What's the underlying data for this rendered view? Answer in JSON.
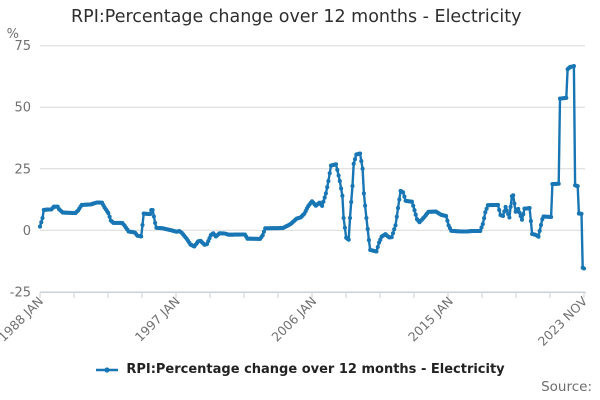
{
  "title": "RPI:Percentage change over 12 months - Electricity",
  "y_axis_unit": "%",
  "legend": {
    "label": "RPI:Percentage change over 12 months - Electricity"
  },
  "source_label": "Source:",
  "colors": {
    "line": "#1976b4",
    "grid": "#d9d9d9",
    "axis": "#c9d2dc",
    "text_muted": "#707070",
    "text_dark": "#2e2e2e"
  },
  "chart_data": {
    "type": "line",
    "title": "RPI:Percentage change over 12 months - Electricity",
    "xlabel": "",
    "ylabel": "%",
    "ylim": [
      -25,
      75
    ],
    "yticks": [
      75,
      50,
      25,
      0,
      -25
    ],
    "grid": "horizontal",
    "legend_position": "bottom-center",
    "x_range_months": [
      "1988-01",
      "2023-11"
    ],
    "xtick_labels": [
      {
        "date": "1988-01",
        "label": "1988 JAN"
      },
      {
        "date": "1997-01",
        "label": "1997 JAN"
      },
      {
        "date": "2006-01",
        "label": "2006 JAN"
      },
      {
        "date": "2015-01",
        "label": "2015 JAN"
      },
      {
        "date": "2023-11",
        "label": "2023 NOV"
      }
    ],
    "minor_xtick_count": 17,
    "series": [
      {
        "name": "RPI:Percentage change over 12 months - Electricity",
        "color": "#1976b4",
        "keypoints": [
          [
            "1988-01",
            1.5
          ],
          [
            "1988-03",
            5.0
          ],
          [
            "1988-04",
            8.3
          ],
          [
            "1988-10",
            8.5
          ],
          [
            "1988-12",
            9.6
          ],
          [
            "1989-03",
            9.6
          ],
          [
            "1989-04",
            8.6
          ],
          [
            "1989-07",
            7.2
          ],
          [
            "1990-05",
            7.0
          ],
          [
            "1990-07",
            8.0
          ],
          [
            "1990-10",
            10.3
          ],
          [
            "1991-05",
            10.5
          ],
          [
            "1991-10",
            11.3
          ],
          [
            "1992-02",
            11.2
          ],
          [
            "1992-04",
            9.3
          ],
          [
            "1992-07",
            7.0
          ],
          [
            "1992-09",
            4.0
          ],
          [
            "1992-11",
            3.0
          ],
          [
            "1993-06",
            3.0
          ],
          [
            "1993-08",
            1.8
          ],
          [
            "1993-11",
            -0.5
          ],
          [
            "1994-04",
            -0.9
          ],
          [
            "1994-06",
            -2.2
          ],
          [
            "1994-09",
            -2.5
          ],
          [
            "1994-11",
            6.8
          ],
          [
            "1995-04",
            6.6
          ],
          [
            "1995-05",
            8.2
          ],
          [
            "1995-06",
            8.2
          ],
          [
            "1995-08",
            3.0
          ],
          [
            "1995-09",
            1.0
          ],
          [
            "1996-02",
            0.8
          ],
          [
            "1996-08",
            0.1
          ],
          [
            "1997-01",
            -0.6
          ],
          [
            "1997-03",
            -0.3
          ],
          [
            "1997-05",
            -1.0
          ],
          [
            "1997-09",
            -3.5
          ],
          [
            "1997-12",
            -5.8
          ],
          [
            "1998-03",
            -6.6
          ],
          [
            "1998-06",
            -4.5
          ],
          [
            "1998-08",
            -4.3
          ],
          [
            "1998-11",
            -5.9
          ],
          [
            "1999-01",
            -5.6
          ],
          [
            "1999-04",
            -2.0
          ],
          [
            "1999-06",
            -1.2
          ],
          [
            "1999-08",
            -2.5
          ],
          [
            "1999-11",
            -1.2
          ],
          [
            "2000-03",
            -1.3
          ],
          [
            "2000-06",
            -1.8
          ],
          [
            "2001-07",
            -1.7
          ],
          [
            "2001-09",
            -3.4
          ],
          [
            "2002-07",
            -3.5
          ],
          [
            "2002-09",
            -2.0
          ],
          [
            "2002-11",
            0.8
          ],
          [
            "2004-01",
            0.9
          ],
          [
            "2004-07",
            2.5
          ],
          [
            "2004-12",
            4.8
          ],
          [
            "2005-03",
            5.2
          ],
          [
            "2005-06",
            6.8
          ],
          [
            "2005-09",
            9.8
          ],
          [
            "2005-12",
            11.8
          ],
          [
            "2006-03",
            10.0
          ],
          [
            "2006-06",
            11.2
          ],
          [
            "2006-08",
            9.9
          ],
          [
            "2006-11",
            15.0
          ],
          [
            "2007-01",
            20.0
          ],
          [
            "2007-03",
            26.3
          ],
          [
            "2007-07",
            26.8
          ],
          [
            "2007-10",
            20.0
          ],
          [
            "2007-12",
            14.0
          ],
          [
            "2008-01",
            5.0
          ],
          [
            "2008-03",
            -3.0
          ],
          [
            "2008-05",
            -3.8
          ],
          [
            "2008-06",
            5.0
          ],
          [
            "2008-08",
            18.0
          ],
          [
            "2008-09",
            27.0
          ],
          [
            "2008-11",
            30.8
          ],
          [
            "2009-02",
            31.2
          ],
          [
            "2009-04",
            25.0
          ],
          [
            "2009-05",
            15.0
          ],
          [
            "2009-07",
            5.0
          ],
          [
            "2009-09",
            -4.0
          ],
          [
            "2009-10",
            -8.0
          ],
          [
            "2010-03",
            -8.6
          ],
          [
            "2010-05",
            -5.0
          ],
          [
            "2010-07",
            -2.6
          ],
          [
            "2010-10",
            -1.6
          ],
          [
            "2011-01",
            -2.9
          ],
          [
            "2011-03",
            -2.8
          ],
          [
            "2011-06",
            2.0
          ],
          [
            "2011-08",
            9.0
          ],
          [
            "2011-10",
            16.0
          ],
          [
            "2011-12",
            15.4
          ],
          [
            "2012-02",
            12.0
          ],
          [
            "2012-07",
            11.6
          ],
          [
            "2012-08",
            10.0
          ],
          [
            "2012-11",
            4.5
          ],
          [
            "2013-01",
            3.3
          ],
          [
            "2013-05",
            5.5
          ],
          [
            "2013-08",
            7.5
          ],
          [
            "2014-02",
            7.6
          ],
          [
            "2014-06",
            6.3
          ],
          [
            "2014-10",
            5.8
          ],
          [
            "2014-12",
            2.0
          ],
          [
            "2015-02",
            -0.2
          ],
          [
            "2015-07",
            -0.4
          ],
          [
            "2016-01",
            -0.5
          ],
          [
            "2016-07",
            -0.3
          ],
          [
            "2017-01",
            -0.3
          ],
          [
            "2017-03",
            2.5
          ],
          [
            "2017-05",
            7.3
          ],
          [
            "2017-07",
            10.2
          ],
          [
            "2018-03",
            10.3
          ],
          [
            "2018-05",
            6.2
          ],
          [
            "2018-07",
            5.8
          ],
          [
            "2018-09",
            9.5
          ],
          [
            "2018-12",
            5.2
          ],
          [
            "2019-02",
            13.8
          ],
          [
            "2019-03",
            14.2
          ],
          [
            "2019-05",
            7.5
          ],
          [
            "2019-07",
            8.7
          ],
          [
            "2019-10",
            4.3
          ],
          [
            "2019-12",
            8.8
          ],
          [
            "2020-04",
            9.0
          ],
          [
            "2020-06",
            -1.5
          ],
          [
            "2020-09",
            -1.9
          ],
          [
            "2020-11",
            -2.6
          ],
          [
            "2021-02",
            4.5
          ],
          [
            "2021-03",
            5.6
          ],
          [
            "2021-09",
            5.4
          ],
          [
            "2021-10",
            18.8
          ],
          [
            "2022-03",
            18.9
          ],
          [
            "2022-04",
            53.5
          ],
          [
            "2022-09",
            53.8
          ],
          [
            "2022-10",
            65.4
          ],
          [
            "2022-12",
            66.3
          ],
          [
            "2023-03",
            66.7
          ],
          [
            "2023-04",
            18.3
          ],
          [
            "2023-06",
            17.9
          ],
          [
            "2023-07",
            6.8
          ],
          [
            "2023-09",
            6.7
          ],
          [
            "2023-10",
            -15.2
          ],
          [
            "2023-11",
            -15.5
          ]
        ]
      }
    ]
  }
}
